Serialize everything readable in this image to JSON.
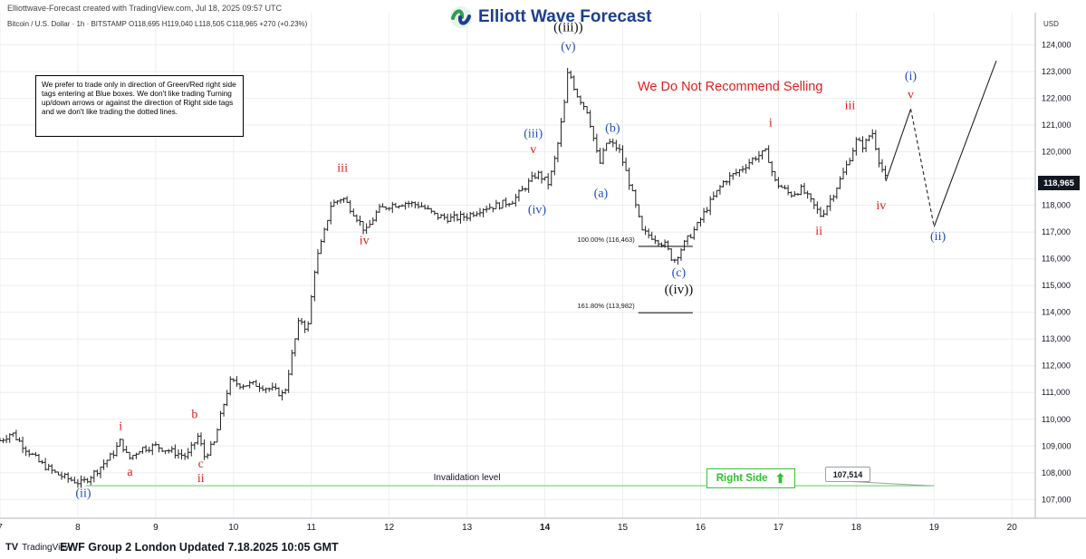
{
  "header": {
    "credit": "Elliottwave-Forecast created with TradingView.com, Jul 18, 2025 09:57 UTC",
    "symbol_line": "Bitcoin / U.S. Dollar · 1h · BITSTAMP  O118,695  H119,040  L118,505  C118,965  +270 (+0.23%)",
    "logo_text": "Elliott Wave Forecast"
  },
  "disclaimer": "We prefer to trade only in direction of Green/Red right side tags entering at Blue boxes. We don't like trading Turning up/down arrows or against the direction of Right side tags and we don't like trading the dotted lines.",
  "footer": {
    "tv_brand": "TradingView",
    "text": "EWF Group 2 London Updated 7.18.2025 10:05 GMT"
  },
  "annotations": {
    "no_sell": "We Do Not Recommend Selling",
    "right_side": "Right Side",
    "right_side_arrow": "⬆",
    "invalidation_label": "Invalidation level",
    "invalidation_value": "107,514",
    "fib_100": "100.00% (116,463)",
    "fib_1618": "161.80% (113,982)"
  },
  "colors": {
    "red": "#e31d1d",
    "blue": "#1f4fb8",
    "black": "#111111",
    "green": "#2ec22e",
    "candle": "#222222",
    "grid": "#eeeeee"
  },
  "chart_data": {
    "type": "line",
    "instrument": "Bitcoin / U.S. Dollar",
    "timeframe": "1h",
    "exchange": "BITSTAMP",
    "ohlc_last": {
      "open": 118695,
      "high": 119040,
      "low": 118505,
      "close": 118965,
      "change": "+270 (+0.23%)"
    },
    "y_axis_unit": "USD",
    "y_range": [
      106300,
      125200
    ],
    "y_ticks": [
      107000,
      108000,
      109000,
      110000,
      111000,
      112000,
      113000,
      114000,
      115000,
      116000,
      117000,
      118000,
      119000,
      120000,
      121000,
      122000,
      123000,
      124000
    ],
    "y_tick_labels": [
      "107,000",
      "108,000",
      "109,000",
      "110,000",
      "111,000",
      "112,000",
      "113,000",
      "114,000",
      "115,000",
      "116,000",
      "117,000",
      "118,000",
      "119,000",
      "120,000",
      "121,000",
      "122,000",
      "123,000",
      "124,000"
    ],
    "x_range": [
      7.0,
      20.3
    ],
    "x_ticks": [
      7,
      8,
      9,
      10,
      11,
      12,
      13,
      14,
      15,
      16,
      17,
      18,
      19,
      20
    ],
    "x_tick_labels": [
      "7",
      "8",
      "9",
      "10",
      "11",
      "12",
      "13",
      "14",
      "15",
      "16",
      "17",
      "18",
      "19",
      "20"
    ],
    "x_tick_bold": [
      14
    ],
    "last_price_label": "118,965",
    "last_price": 118965,
    "price_path": [
      [
        7.0,
        109200
      ],
      [
        7.15,
        109500
      ],
      [
        7.3,
        109000
      ],
      [
        7.5,
        108400
      ],
      [
        7.7,
        108000
      ],
      [
        7.85,
        107800
      ],
      [
        8.05,
        107600
      ],
      [
        8.25,
        108100
      ],
      [
        8.45,
        108700
      ],
      [
        8.55,
        109200
      ],
      [
        8.65,
        108500
      ],
      [
        8.8,
        108900
      ],
      [
        9.0,
        109000
      ],
      [
        9.2,
        108800
      ],
      [
        9.4,
        108600
      ],
      [
        9.55,
        109400
      ],
      [
        9.62,
        108600
      ],
      [
        9.75,
        109100
      ],
      [
        9.85,
        110300
      ],
      [
        9.95,
        111400
      ],
      [
        10.1,
        111300
      ],
      [
        10.3,
        111300
      ],
      [
        10.5,
        111100
      ],
      [
        10.65,
        110900
      ],
      [
        10.75,
        112400
      ],
      [
        10.85,
        113800
      ],
      [
        10.95,
        113300
      ],
      [
        11.05,
        115800
      ],
      [
        11.15,
        116800
      ],
      [
        11.25,
        118000
      ],
      [
        11.4,
        118300
      ],
      [
        11.55,
        117700
      ],
      [
        11.7,
        117000
      ],
      [
        11.85,
        117800
      ],
      [
        12.0,
        118000
      ],
      [
        12.2,
        118100
      ],
      [
        12.4,
        118000
      ],
      [
        12.6,
        117600
      ],
      [
        12.8,
        117500
      ],
      [
        13.0,
        117600
      ],
      [
        13.2,
        117900
      ],
      [
        13.4,
        118000
      ],
      [
        13.6,
        118200
      ],
      [
        13.75,
        118700
      ],
      [
        13.9,
        119200
      ],
      [
        14.05,
        118800
      ],
      [
        14.15,
        120000
      ],
      [
        14.25,
        121800
      ],
      [
        14.3,
        123100
      ],
      [
        14.4,
        122200
      ],
      [
        14.55,
        121500
      ],
      [
        14.7,
        119500
      ],
      [
        14.8,
        120400
      ],
      [
        14.95,
        120100
      ],
      [
        15.1,
        118700
      ],
      [
        15.25,
        117000
      ],
      [
        15.4,
        116800
      ],
      [
        15.55,
        116500
      ],
      [
        15.65,
        115900
      ],
      [
        15.8,
        116600
      ],
      [
        15.95,
        117200
      ],
      [
        16.1,
        118000
      ],
      [
        16.3,
        118900
      ],
      [
        16.5,
        119300
      ],
      [
        16.7,
        119800
      ],
      [
        16.85,
        120000
      ],
      [
        16.95,
        118900
      ],
      [
        17.15,
        118400
      ],
      [
        17.3,
        118600
      ],
      [
        17.45,
        118000
      ],
      [
        17.55,
        117600
      ],
      [
        17.7,
        118400
      ],
      [
        17.85,
        119300
      ],
      [
        18.0,
        120400
      ],
      [
        18.1,
        120200
      ],
      [
        18.2,
        120800
      ],
      [
        18.3,
        119600
      ],
      [
        18.38,
        118965
      ]
    ],
    "projection_solid": [
      [
        18.38,
        118900
      ],
      [
        18.7,
        121600
      ]
    ],
    "projection_dashed": [
      [
        18.7,
        121600
      ],
      [
        19.0,
        117200
      ]
    ],
    "projection_solid_2": [
      [
        19.0,
        117200
      ],
      [
        19.8,
        123400
      ]
    ],
    "levels": [
      {
        "name": "invalidation",
        "price": 107514,
        "x_start": 8.1,
        "x_end": 19.0,
        "color": "#7ed67e"
      },
      {
        "name": "fib_100",
        "price": 116463,
        "x_start": 15.2,
        "x_end": 15.9,
        "color": "#222222"
      },
      {
        "name": "fib_1618",
        "price": 113982,
        "x_start": 15.2,
        "x_end": 15.9,
        "color": "#222222"
      }
    ],
    "wave_labels": [
      {
        "text": "(ii)",
        "x": 8.07,
        "y": 107100,
        "color": "blue"
      },
      {
        "text": "i",
        "x": 8.55,
        "y": 109600,
        "color": "red"
      },
      {
        "text": "a",
        "x": 8.67,
        "y": 107900,
        "color": "red"
      },
      {
        "text": "b",
        "x": 9.5,
        "y": 110050,
        "color": "red"
      },
      {
        "text": "c",
        "x": 9.58,
        "y": 108200,
        "color": "red"
      },
      {
        "text": "ii",
        "x": 9.58,
        "y": 107650,
        "color": "red"
      },
      {
        "text": "iii",
        "x": 11.4,
        "y": 119250,
        "color": "red"
      },
      {
        "text": "iv",
        "x": 11.68,
        "y": 116550,
        "color": "red"
      },
      {
        "text": "(iii)",
        "x": 13.85,
        "y": 120550,
        "color": "blue"
      },
      {
        "text": "v",
        "x": 13.85,
        "y": 119950,
        "color": "red"
      },
      {
        "text": "(iv)",
        "x": 13.9,
        "y": 117700,
        "color": "blue"
      },
      {
        "text": "((iii))",
        "x": 14.3,
        "y": 124500,
        "color": "black"
      },
      {
        "text": "(v)",
        "x": 14.3,
        "y": 123800,
        "color": "blue"
      },
      {
        "text": "(b)",
        "x": 14.87,
        "y": 120750,
        "color": "blue"
      },
      {
        "text": "(a)",
        "x": 14.72,
        "y": 118300,
        "color": "blue"
      },
      {
        "text": "(c)",
        "x": 15.72,
        "y": 115350,
        "color": "blue"
      },
      {
        "text": "((iv))",
        "x": 15.72,
        "y": 114700,
        "color": "black"
      },
      {
        "text": "i",
        "x": 16.9,
        "y": 120950,
        "color": "red"
      },
      {
        "text": "ii",
        "x": 17.52,
        "y": 116900,
        "color": "red"
      },
      {
        "text": "iii",
        "x": 17.92,
        "y": 121600,
        "color": "red"
      },
      {
        "text": "iv",
        "x": 18.32,
        "y": 117850,
        "color": "red"
      },
      {
        "text": "(i)",
        "x": 18.7,
        "y": 122700,
        "color": "blue"
      },
      {
        "text": "v",
        "x": 18.7,
        "y": 122000,
        "color": "red"
      },
      {
        "text": "(ii)",
        "x": 19.05,
        "y": 116700,
        "color": "blue"
      }
    ]
  }
}
